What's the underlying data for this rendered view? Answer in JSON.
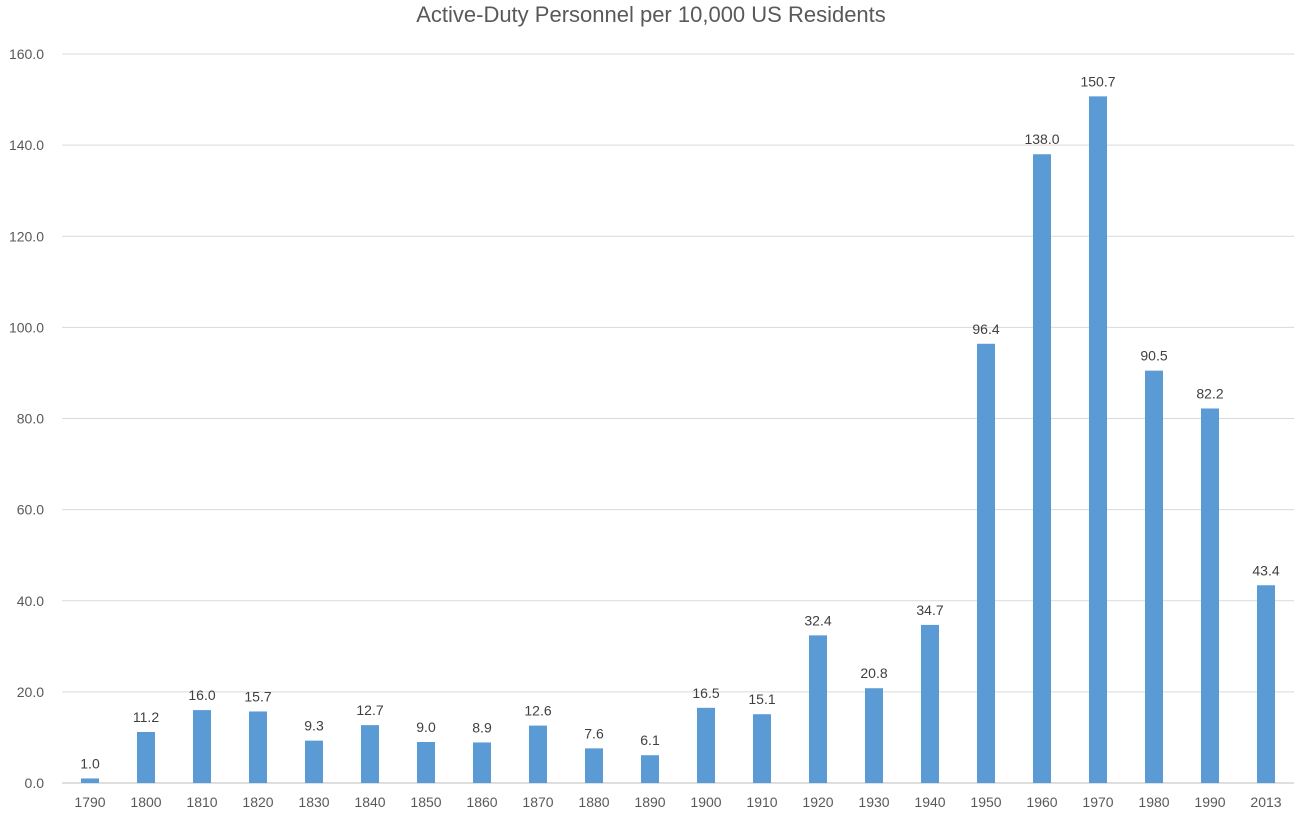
{
  "chart_data": {
    "type": "bar",
    "title": "Active-Duty Personnel per 10,000 US Residents",
    "xlabel": "",
    "ylabel": "",
    "categories": [
      "1790",
      "1800",
      "1810",
      "1820",
      "1830",
      "1840",
      "1850",
      "1860",
      "1870",
      "1880",
      "1890",
      "1900",
      "1910",
      "1920",
      "1930",
      "1940",
      "1950",
      "1960",
      "1970",
      "1980",
      "1990",
      "2013"
    ],
    "values": [
      1.0,
      11.2,
      16.0,
      15.7,
      9.3,
      12.7,
      9.0,
      8.9,
      12.6,
      7.6,
      6.1,
      16.5,
      15.1,
      32.4,
      20.8,
      34.7,
      96.4,
      138.0,
      150.7,
      90.5,
      82.2,
      43.4
    ],
    "data_labels": [
      "1.0",
      "11.2",
      "16.0",
      "15.7",
      "9.3",
      "12.7",
      "9.0",
      "8.9",
      "12.6",
      "7.6",
      "6.1",
      "16.5",
      "15.1",
      "32.4",
      "20.8",
      "34.7",
      "96.4",
      "138.0",
      "150.7",
      "90.5",
      "82.2",
      "43.4"
    ],
    "ylim": [
      0,
      160
    ],
    "yticks": [
      "0.0",
      "20.0",
      "40.0",
      "60.0",
      "80.0",
      "100.0",
      "120.0",
      "140.0",
      "160.0"
    ],
    "grid": true,
    "legend": "none",
    "colors": {
      "bar": "#5b9bd5"
    }
  }
}
